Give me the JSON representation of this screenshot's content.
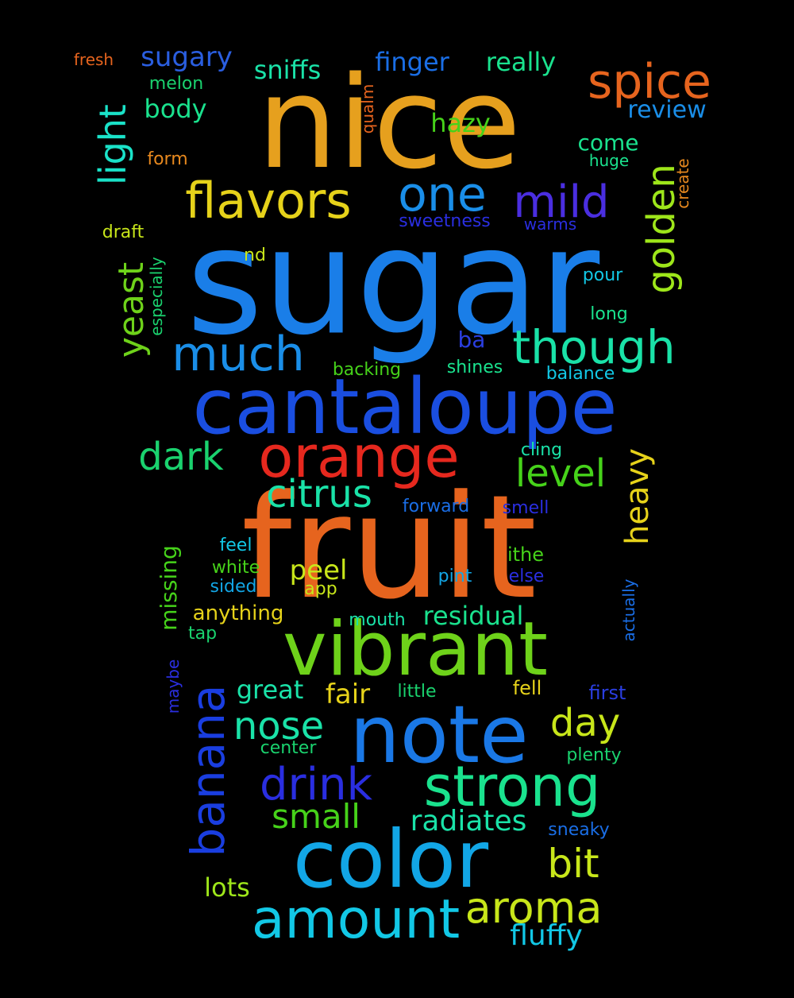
{
  "words": [
    {
      "text": "sugar",
      "color": "#1a7ee8"
    },
    {
      "text": "fruit",
      "color": "#e6641e"
    },
    {
      "text": "nice",
      "color": "#e6a01e"
    },
    {
      "text": "cantaloupe",
      "color": "#1a4ee0"
    },
    {
      "text": "vibrant",
      "color": "#6ed21a"
    },
    {
      "text": "note",
      "color": "#1a78e6"
    },
    {
      "text": "color",
      "color": "#12a6e6"
    },
    {
      "text": "orange",
      "color": "#e6281e"
    },
    {
      "text": "flavors",
      "color": "#e6d21a"
    },
    {
      "text": "strong",
      "color": "#1ae28e"
    },
    {
      "text": "amount",
      "color": "#12c8e6"
    },
    {
      "text": "one",
      "color": "#1a8ee8"
    },
    {
      "text": "much",
      "color": "#1a8ee8"
    },
    {
      "text": "spice",
      "color": "#e6641e"
    },
    {
      "text": "though",
      "color": "#1ae2a8"
    },
    {
      "text": "mild",
      "color": "#4a2ee0"
    },
    {
      "text": "banana",
      "color": "#1a3ee0"
    },
    {
      "text": "drink",
      "color": "#2a2ee0"
    },
    {
      "text": "aroma",
      "color": "#c8e61a"
    },
    {
      "text": "golden",
      "color": "#9ee61a"
    },
    {
      "text": "dark",
      "color": "#1ad26e"
    },
    {
      "text": "citrus",
      "color": "#1ae2a8"
    },
    {
      "text": "level",
      "color": "#46d21a"
    },
    {
      "text": "nose",
      "color": "#1ae2a8"
    },
    {
      "text": "day",
      "color": "#c8e61a"
    },
    {
      "text": "bit",
      "color": "#c8e61a"
    },
    {
      "text": "light",
      "color": "#1ae2c8"
    },
    {
      "text": "yeast",
      "color": "#6ed21a"
    },
    {
      "text": "heavy",
      "color": "#e6d21a"
    },
    {
      "text": "small",
      "color": "#46d21a"
    },
    {
      "text": "radiates",
      "color": "#1ae2a8"
    },
    {
      "text": "fluffy",
      "color": "#12c8e6"
    },
    {
      "text": "sugary",
      "color": "#2a5ee0"
    },
    {
      "text": "finger",
      "color": "#1a6ee6"
    },
    {
      "text": "really",
      "color": "#1ae28e"
    },
    {
      "text": "sniffs",
      "color": "#1ae2a8"
    },
    {
      "text": "review",
      "color": "#1a8ee8"
    },
    {
      "text": "body",
      "color": "#1ae28e"
    },
    {
      "text": "hazy",
      "color": "#46d21a"
    },
    {
      "text": "come",
      "color": "#1ae28e"
    },
    {
      "text": "peel",
      "color": "#c8e61a"
    },
    {
      "text": "residual",
      "color": "#1ae28e"
    },
    {
      "text": "fair",
      "color": "#e6d21a"
    },
    {
      "text": "great",
      "color": "#1ae2a8"
    },
    {
      "text": "lots",
      "color": "#9ee61a"
    },
    {
      "text": "missing",
      "color": "#46d21a"
    },
    {
      "text": "fresh",
      "color": "#e6641e"
    },
    {
      "text": "melon",
      "color": "#1ad26e"
    },
    {
      "text": "qualm",
      "color": "#e6641e"
    },
    {
      "text": "form",
      "color": "#e6881e"
    },
    {
      "text": "huge",
      "color": "#1ae28e"
    },
    {
      "text": "create",
      "color": "#e6881e"
    },
    {
      "text": "sweetness",
      "color": "#2a2ee0"
    },
    {
      "text": "warms",
      "color": "#2a2ee0"
    },
    {
      "text": "draft",
      "color": "#c8e61a"
    },
    {
      "text": "especially",
      "color": "#1ad26e"
    },
    {
      "text": "nd",
      "color": "#c8e61a"
    },
    {
      "text": "pour",
      "color": "#12c8e6"
    },
    {
      "text": "long",
      "color": "#1ae28e"
    },
    {
      "text": "ba",
      "color": "#2a3ee0"
    },
    {
      "text": "backing",
      "color": "#46d21a"
    },
    {
      "text": "shines",
      "color": "#1ae28e"
    },
    {
      "text": "balance",
      "color": "#12c8e6"
    },
    {
      "text": "cling",
      "color": "#1ae2a8"
    },
    {
      "text": "forward",
      "color": "#1a6ee6"
    },
    {
      "text": "smell",
      "color": "#2a2ee0"
    },
    {
      "text": "feel",
      "color": "#12c8e6"
    },
    {
      "text": "white",
      "color": "#46d21a"
    },
    {
      "text": "sided",
      "color": "#12a6e6"
    },
    {
      "text": "app",
      "color": "#c8e61a"
    },
    {
      "text": "ithe",
      "color": "#46d21a"
    },
    {
      "text": "pint",
      "color": "#12a6e6"
    },
    {
      "text": "else",
      "color": "#2a2ee0"
    },
    {
      "text": "anything",
      "color": "#e6d21a"
    },
    {
      "text": "tap",
      "color": "#1ad26e"
    },
    {
      "text": "mouth",
      "color": "#1ae2a8"
    },
    {
      "text": "actually",
      "color": "#1a6ee6"
    },
    {
      "text": "maybe",
      "color": "#2a2ee0"
    },
    {
      "text": "little",
      "color": "#1ad26e"
    },
    {
      "text": "fell",
      "color": "#e6d21a"
    },
    {
      "text": "first",
      "color": "#2a3ee0"
    },
    {
      "text": "center",
      "color": "#1ad26e"
    },
    {
      "text": "plenty",
      "color": "#1ad26e"
    },
    {
      "text": "sneaky",
      "color": "#1a6ee6"
    }
  ]
}
